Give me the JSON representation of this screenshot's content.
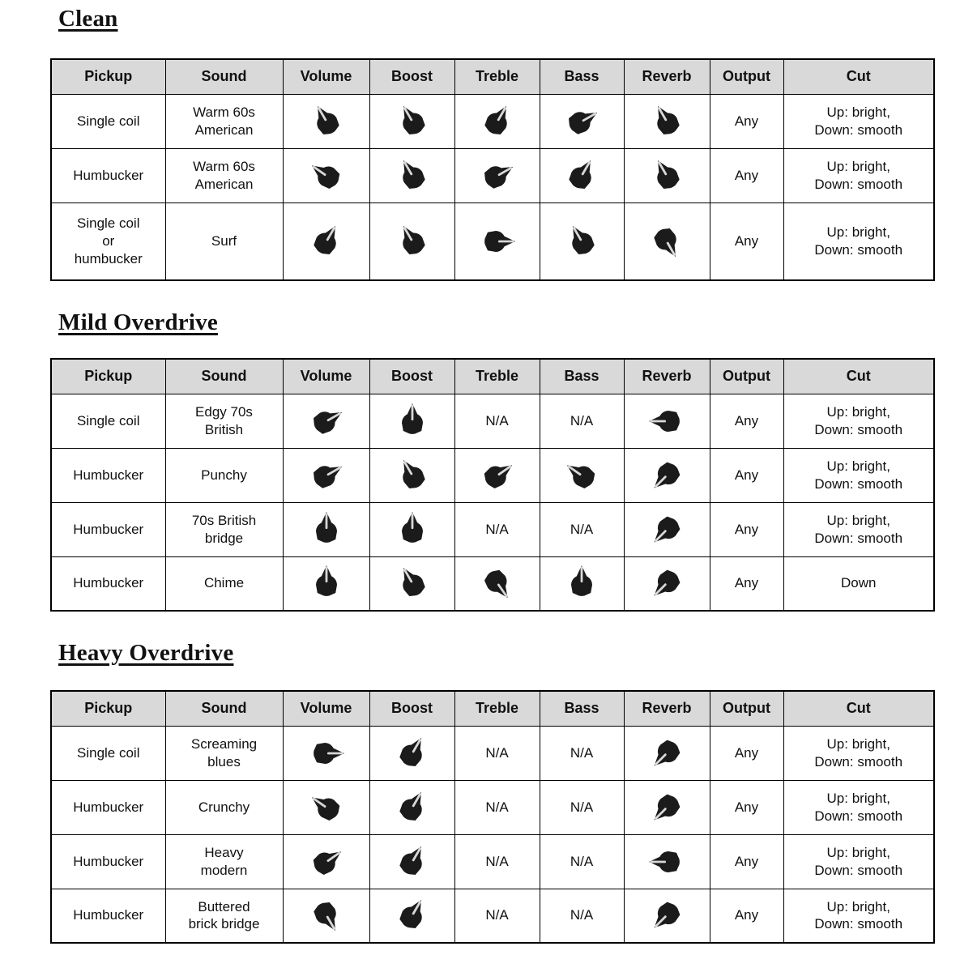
{
  "columns": [
    "Pickup",
    "Sound",
    "Volume",
    "Boost",
    "Treble",
    "Bass",
    "Reverb",
    "Output",
    "Cut"
  ],
  "header_bg": "#d9d9d9",
  "knob": {
    "color": "#1b1b1b",
    "pointer_color": "#d8d8d8"
  },
  "sections": [
    {
      "title": "Clean",
      "rows": [
        {
          "pickup": "Single coil",
          "sound": "Warm 60s\nAmerican",
          "knobs": {
            "volume": -30,
            "boost": -30,
            "treble": 30,
            "bass": 60,
            "reverb": -30
          },
          "output": "Any",
          "cut": "Up: bright,\nDown: smooth"
        },
        {
          "pickup": "Humbucker",
          "sound": "Warm 60s\nAmerican",
          "knobs": {
            "volume": -55,
            "boost": -30,
            "treble": 60,
            "bass": 30,
            "reverb": -30
          },
          "output": "Any",
          "cut": "Up: bright,\nDown: smooth"
        },
        {
          "pickup": "Single coil\nor\nhumbucker",
          "sound": "Surf",
          "knobs": {
            "volume": 30,
            "boost": -30,
            "treble": 90,
            "bass": -30,
            "reverb": 150
          },
          "output": "Any",
          "cut": "Up: bright,\nDown: smooth"
        }
      ]
    },
    {
      "title": "Mild Overdrive",
      "rows": [
        {
          "pickup": "Single coil",
          "sound": "Edgy 70s\nBritish",
          "knobs": {
            "volume": 60,
            "boost": 0,
            "treble": "N/A",
            "bass": "N/A",
            "reverb": -90
          },
          "output": "Any",
          "cut": "Up: bright,\nDown: smooth"
        },
        {
          "pickup": "Humbucker",
          "sound": "Punchy",
          "knobs": {
            "volume": 60,
            "boost": -30,
            "treble": 55,
            "bass": -55,
            "reverb": -135
          },
          "output": "Any",
          "cut": "Up: bright,\nDown: smooth"
        },
        {
          "pickup": "Humbucker",
          "sound": "70s British\nbridge",
          "knobs": {
            "volume": 0,
            "boost": 0,
            "treble": "N/A",
            "bass": "N/A",
            "reverb": -135
          },
          "output": "Any",
          "cut": "Up: bright,\nDown: smooth"
        },
        {
          "pickup": "Humbucker",
          "sound": "Chime",
          "knobs": {
            "volume": 0,
            "boost": -30,
            "treble": 145,
            "bass": 0,
            "reverb": -135
          },
          "output": "Any",
          "cut": "Down"
        }
      ]
    },
    {
      "title": "Heavy Overdrive",
      "rows": [
        {
          "pickup": "Single coil",
          "sound": "Screaming\nblues",
          "knobs": {
            "volume": 90,
            "boost": 30,
            "treble": "N/A",
            "bass": "N/A",
            "reverb": -135
          },
          "output": "Any",
          "cut": "Up: bright,\nDown: smooth"
        },
        {
          "pickup": "Humbucker",
          "sound": "Crunchy",
          "knobs": {
            "volume": -55,
            "boost": 30,
            "treble": "N/A",
            "bass": "N/A",
            "reverb": -135
          },
          "output": "Any",
          "cut": "Up: bright,\nDown: smooth"
        },
        {
          "pickup": "Humbucker",
          "sound": "Heavy\nmodern",
          "knobs": {
            "volume": 55,
            "boost": 30,
            "treble": "N/A",
            "bass": "N/A",
            "reverb": -90
          },
          "output": "Any",
          "cut": "Up: bright,\nDown: smooth"
        },
        {
          "pickup": "Humbucker",
          "sound": "Buttered\nbrick bridge",
          "knobs": {
            "volume": 150,
            "boost": 30,
            "treble": "N/A",
            "bass": "N/A",
            "reverb": -135
          },
          "output": "Any",
          "cut": "Up: bright,\nDown: smooth"
        }
      ]
    }
  ]
}
